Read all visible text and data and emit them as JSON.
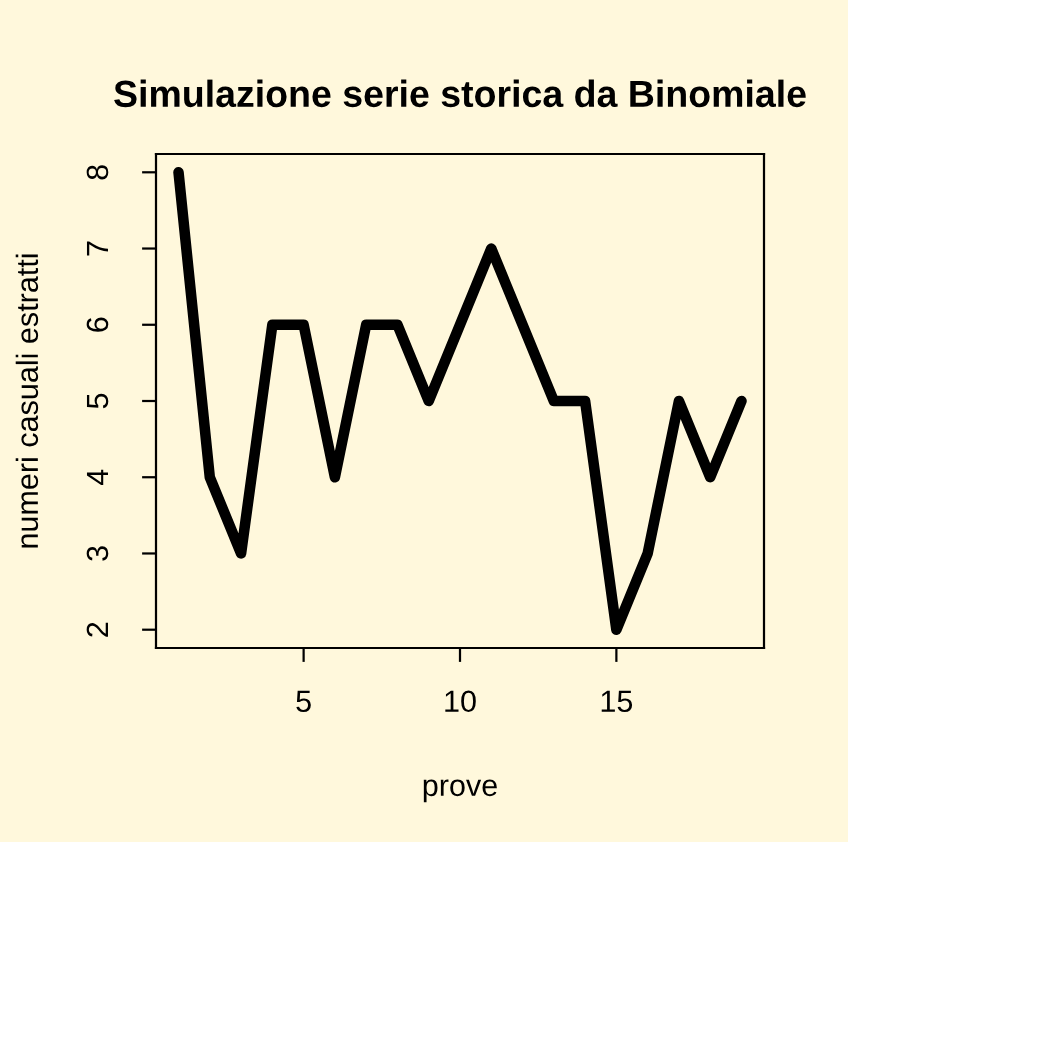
{
  "chart_data": {
    "type": "line",
    "title": "Simulazione serie storica da Binomiale",
    "xlabel": "prove",
    "ylabel": "numeri casuali estratti",
    "x": [
      1,
      2,
      3,
      4,
      5,
      6,
      7,
      8,
      9,
      10,
      11,
      12,
      13,
      14,
      15,
      16,
      17,
      18,
      19
    ],
    "series": [
      {
        "color": "#000000",
        "values": [
          8,
          4,
          3,
          6,
          6,
          4,
          6,
          6,
          5,
          6,
          7,
          6,
          5,
          5,
          2,
          3,
          5,
          4,
          5
        ]
      }
    ],
    "xlim": [
      0.28,
      19.72
    ],
    "ylim": [
      1.76,
      8.24
    ],
    "xticks": [
      5,
      10,
      15
    ],
    "yticks": [
      2,
      3,
      4,
      5,
      6,
      7,
      8
    ],
    "grid": false,
    "line_style": "solid"
  }
}
